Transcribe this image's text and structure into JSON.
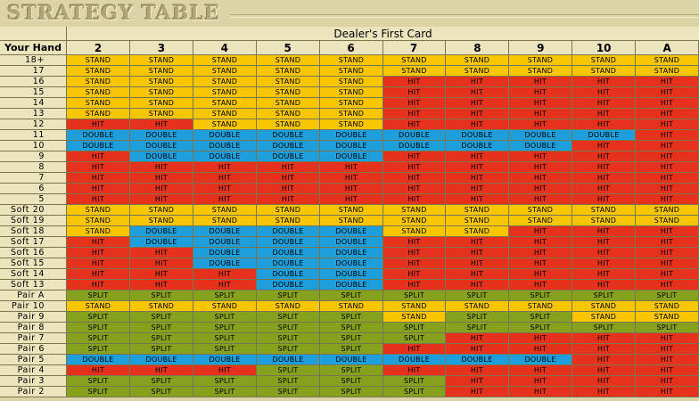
{
  "header": {
    "title": "STRATEGY TABLE"
  },
  "table": {
    "caption": "Dealer's First Card",
    "corner": "Your Hand",
    "columns": [
      "2",
      "3",
      "4",
      "5",
      "6",
      "7",
      "8",
      "9",
      "10",
      "A"
    ],
    "action_colors": {
      "STAND": "#f7c600",
      "HIT": "#e6321c",
      "DOUBLE": "#1e9fdc",
      "SPLIT": "#86a11e"
    },
    "rows": [
      {
        "hand": "18+",
        "actions": [
          "STAND",
          "STAND",
          "STAND",
          "STAND",
          "STAND",
          "STAND",
          "STAND",
          "STAND",
          "STAND",
          "STAND"
        ]
      },
      {
        "hand": "17",
        "actions": [
          "STAND",
          "STAND",
          "STAND",
          "STAND",
          "STAND",
          "STAND",
          "STAND",
          "STAND",
          "STAND",
          "STAND"
        ]
      },
      {
        "hand": "16",
        "actions": [
          "STAND",
          "STAND",
          "STAND",
          "STAND",
          "STAND",
          "HIT",
          "HIT",
          "HIT",
          "HIT",
          "HIT"
        ]
      },
      {
        "hand": "15",
        "actions": [
          "STAND",
          "STAND",
          "STAND",
          "STAND",
          "STAND",
          "HIT",
          "HIT",
          "HIT",
          "HIT",
          "HIT"
        ]
      },
      {
        "hand": "14",
        "actions": [
          "STAND",
          "STAND",
          "STAND",
          "STAND",
          "STAND",
          "HIT",
          "HIT",
          "HIT",
          "HIT",
          "HIT"
        ]
      },
      {
        "hand": "13",
        "actions": [
          "STAND",
          "STAND",
          "STAND",
          "STAND",
          "STAND",
          "HIT",
          "HIT",
          "HIT",
          "HIT",
          "HIT"
        ]
      },
      {
        "hand": "12",
        "actions": [
          "HIT",
          "HIT",
          "STAND",
          "STAND",
          "STAND",
          "HIT",
          "HIT",
          "HIT",
          "HIT",
          "HIT"
        ]
      },
      {
        "hand": "11",
        "actions": [
          "DOUBLE",
          "DOUBLE",
          "DOUBLE",
          "DOUBLE",
          "DOUBLE",
          "DOUBLE",
          "DOUBLE",
          "DOUBLE",
          "DOUBLE",
          "HIT"
        ]
      },
      {
        "hand": "10",
        "actions": [
          "DOUBLE",
          "DOUBLE",
          "DOUBLE",
          "DOUBLE",
          "DOUBLE",
          "DOUBLE",
          "DOUBLE",
          "DOUBLE",
          "HIT",
          "HIT"
        ]
      },
      {
        "hand": "9",
        "actions": [
          "HIT",
          "DOUBLE",
          "DOUBLE",
          "DOUBLE",
          "DOUBLE",
          "HIT",
          "HIT",
          "HIT",
          "HIT",
          "HIT"
        ]
      },
      {
        "hand": "8",
        "actions": [
          "HIT",
          "HIT",
          "HIT",
          "HIT",
          "HIT",
          "HIT",
          "HIT",
          "HIT",
          "HIT",
          "HIT"
        ]
      },
      {
        "hand": "7",
        "actions": [
          "HIT",
          "HIT",
          "HIT",
          "HIT",
          "HIT",
          "HIT",
          "HIT",
          "HIT",
          "HIT",
          "HIT"
        ]
      },
      {
        "hand": "6",
        "actions": [
          "HIT",
          "HIT",
          "HIT",
          "HIT",
          "HIT",
          "HIT",
          "HIT",
          "HIT",
          "HIT",
          "HIT"
        ]
      },
      {
        "hand": "5",
        "actions": [
          "HIT",
          "HIT",
          "HIT",
          "HIT",
          "HIT",
          "HIT",
          "HIT",
          "HIT",
          "HIT",
          "HIT"
        ]
      },
      {
        "hand": "Soft 20",
        "actions": [
          "STAND",
          "STAND",
          "STAND",
          "STAND",
          "STAND",
          "STAND",
          "STAND",
          "STAND",
          "STAND",
          "STAND"
        ]
      },
      {
        "hand": "Soft 19",
        "actions": [
          "STAND",
          "STAND",
          "STAND",
          "STAND",
          "STAND",
          "STAND",
          "STAND",
          "STAND",
          "STAND",
          "STAND"
        ]
      },
      {
        "hand": "Soft 18",
        "actions": [
          "STAND",
          "DOUBLE",
          "DOUBLE",
          "DOUBLE",
          "DOUBLE",
          "STAND",
          "STAND",
          "HIT",
          "HIT",
          "HIT"
        ]
      },
      {
        "hand": "Soft 17",
        "actions": [
          "HIT",
          "DOUBLE",
          "DOUBLE",
          "DOUBLE",
          "DOUBLE",
          "HIT",
          "HIT",
          "HIT",
          "HIT",
          "HIT"
        ]
      },
      {
        "hand": "Soft 16",
        "actions": [
          "HIT",
          "HIT",
          "DOUBLE",
          "DOUBLE",
          "DOUBLE",
          "HIT",
          "HIT",
          "HIT",
          "HIT",
          "HIT"
        ]
      },
      {
        "hand": "Soft 15",
        "actions": [
          "HIT",
          "HIT",
          "DOUBLE",
          "DOUBLE",
          "DOUBLE",
          "HIT",
          "HIT",
          "HIT",
          "HIT",
          "HIT"
        ]
      },
      {
        "hand": "Soft 14",
        "actions": [
          "HIT",
          "HIT",
          "HIT",
          "DOUBLE",
          "DOUBLE",
          "HIT",
          "HIT",
          "HIT",
          "HIT",
          "HIT"
        ]
      },
      {
        "hand": "Soft 13",
        "actions": [
          "HIT",
          "HIT",
          "HIT",
          "DOUBLE",
          "DOUBLE",
          "HIT",
          "HIT",
          "HIT",
          "HIT",
          "HIT"
        ]
      },
      {
        "hand": "Pair A",
        "actions": [
          "SPLIT",
          "SPLIT",
          "SPLIT",
          "SPLIT",
          "SPLIT",
          "SPLIT",
          "SPLIT",
          "SPLIT",
          "SPLIT",
          "SPLIT"
        ]
      },
      {
        "hand": "Pair 10",
        "actions": [
          "STAND",
          "STAND",
          "STAND",
          "STAND",
          "STAND",
          "STAND",
          "STAND",
          "STAND",
          "STAND",
          "STAND"
        ]
      },
      {
        "hand": "Pair 9",
        "actions": [
          "SPLIT",
          "SPLIT",
          "SPLIT",
          "SPLIT",
          "SPLIT",
          "STAND",
          "SPLIT",
          "SPLIT",
          "STAND",
          "STAND"
        ]
      },
      {
        "hand": "Pair 8",
        "actions": [
          "SPLIT",
          "SPLIT",
          "SPLIT",
          "SPLIT",
          "SPLIT",
          "SPLIT",
          "SPLIT",
          "SPLIT",
          "SPLIT",
          "SPLIT"
        ]
      },
      {
        "hand": "Pair 7",
        "actions": [
          "SPLIT",
          "SPLIT",
          "SPLIT",
          "SPLIT",
          "SPLIT",
          "SPLIT",
          "HIT",
          "HIT",
          "HIT",
          "HIT"
        ]
      },
      {
        "hand": "Pair 6",
        "actions": [
          "SPLIT",
          "SPLIT",
          "SPLIT",
          "SPLIT",
          "SPLIT",
          "HIT",
          "HIT",
          "HIT",
          "HIT",
          "HIT"
        ]
      },
      {
        "hand": "Pair 5",
        "actions": [
          "DOUBLE",
          "DOUBLE",
          "DOUBLE",
          "DOUBLE",
          "DOUBLE",
          "DOUBLE",
          "DOUBLE",
          "DOUBLE",
          "HIT",
          "HIT"
        ]
      },
      {
        "hand": "Pair 4",
        "actions": [
          "HIT",
          "HIT",
          "HIT",
          "SPLIT",
          "SPLIT",
          "HIT",
          "HIT",
          "HIT",
          "HIT",
          "HIT"
        ]
      },
      {
        "hand": "Pair 3",
        "actions": [
          "SPLIT",
          "SPLIT",
          "SPLIT",
          "SPLIT",
          "SPLIT",
          "SPLIT",
          "HIT",
          "HIT",
          "HIT",
          "HIT"
        ]
      },
      {
        "hand": "Pair 2",
        "actions": [
          "SPLIT",
          "SPLIT",
          "SPLIT",
          "SPLIT",
          "SPLIT",
          "SPLIT",
          "HIT",
          "HIT",
          "HIT",
          "HIT"
        ]
      }
    ]
  }
}
